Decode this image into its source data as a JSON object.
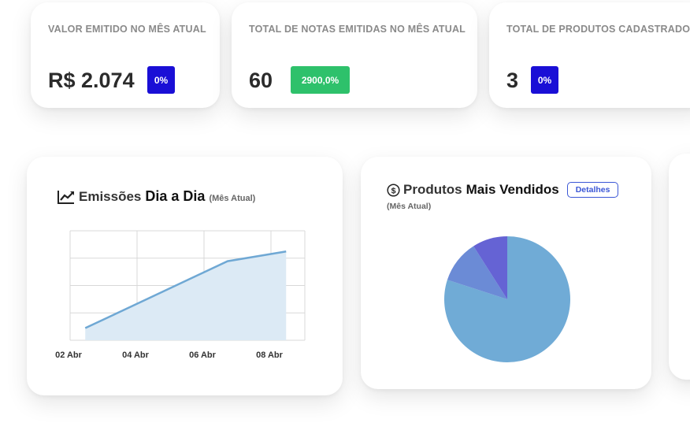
{
  "stats": [
    {
      "title": "VALOR EMITIDO NO MÊS ATUAL",
      "value": "R$ 2.074",
      "badge": "0%",
      "badge_color": "#1a0fd6"
    },
    {
      "title": "TOTAL DE NOTAS EMITIDAS NO MÊS ATUAL",
      "value": "60",
      "badge": "2900,0%",
      "badge_color": "#2ec16b"
    },
    {
      "title": "TOTAL DE PRODUTOS CADASTRADOS",
      "value": "3",
      "badge": "0%",
      "badge_color": "#1a0fd6"
    }
  ],
  "emissoes": {
    "title_light": "Emissões",
    "title_bold": "Dia a Dia",
    "subtitle": "(Mês Atual)",
    "icon": "line-chart-icon"
  },
  "produtos": {
    "title_light": "Produtos",
    "title_bold": "Mais Vendidos",
    "subtitle": "(Mês Atual)",
    "details_label": "Detalhes",
    "icon": "dollar-circle-icon"
  },
  "chart_data": [
    {
      "type": "area",
      "x_tick_labels": [
        "02 Abr",
        "04 Abr",
        "06 Abr",
        "08 Abr"
      ],
      "x": [
        2.5,
        6.75,
        8.5
      ],
      "y": [
        1,
        6.5,
        7.3
      ],
      "ylim": [
        0,
        9
      ],
      "grid": true,
      "color": "#6fa8d4",
      "fill": "#dceaf5"
    },
    {
      "type": "pie",
      "values": [
        80,
        11,
        9
      ],
      "colors": [
        "#70abd6",
        "#6b8bd6",
        "#6563d4"
      ]
    }
  ]
}
